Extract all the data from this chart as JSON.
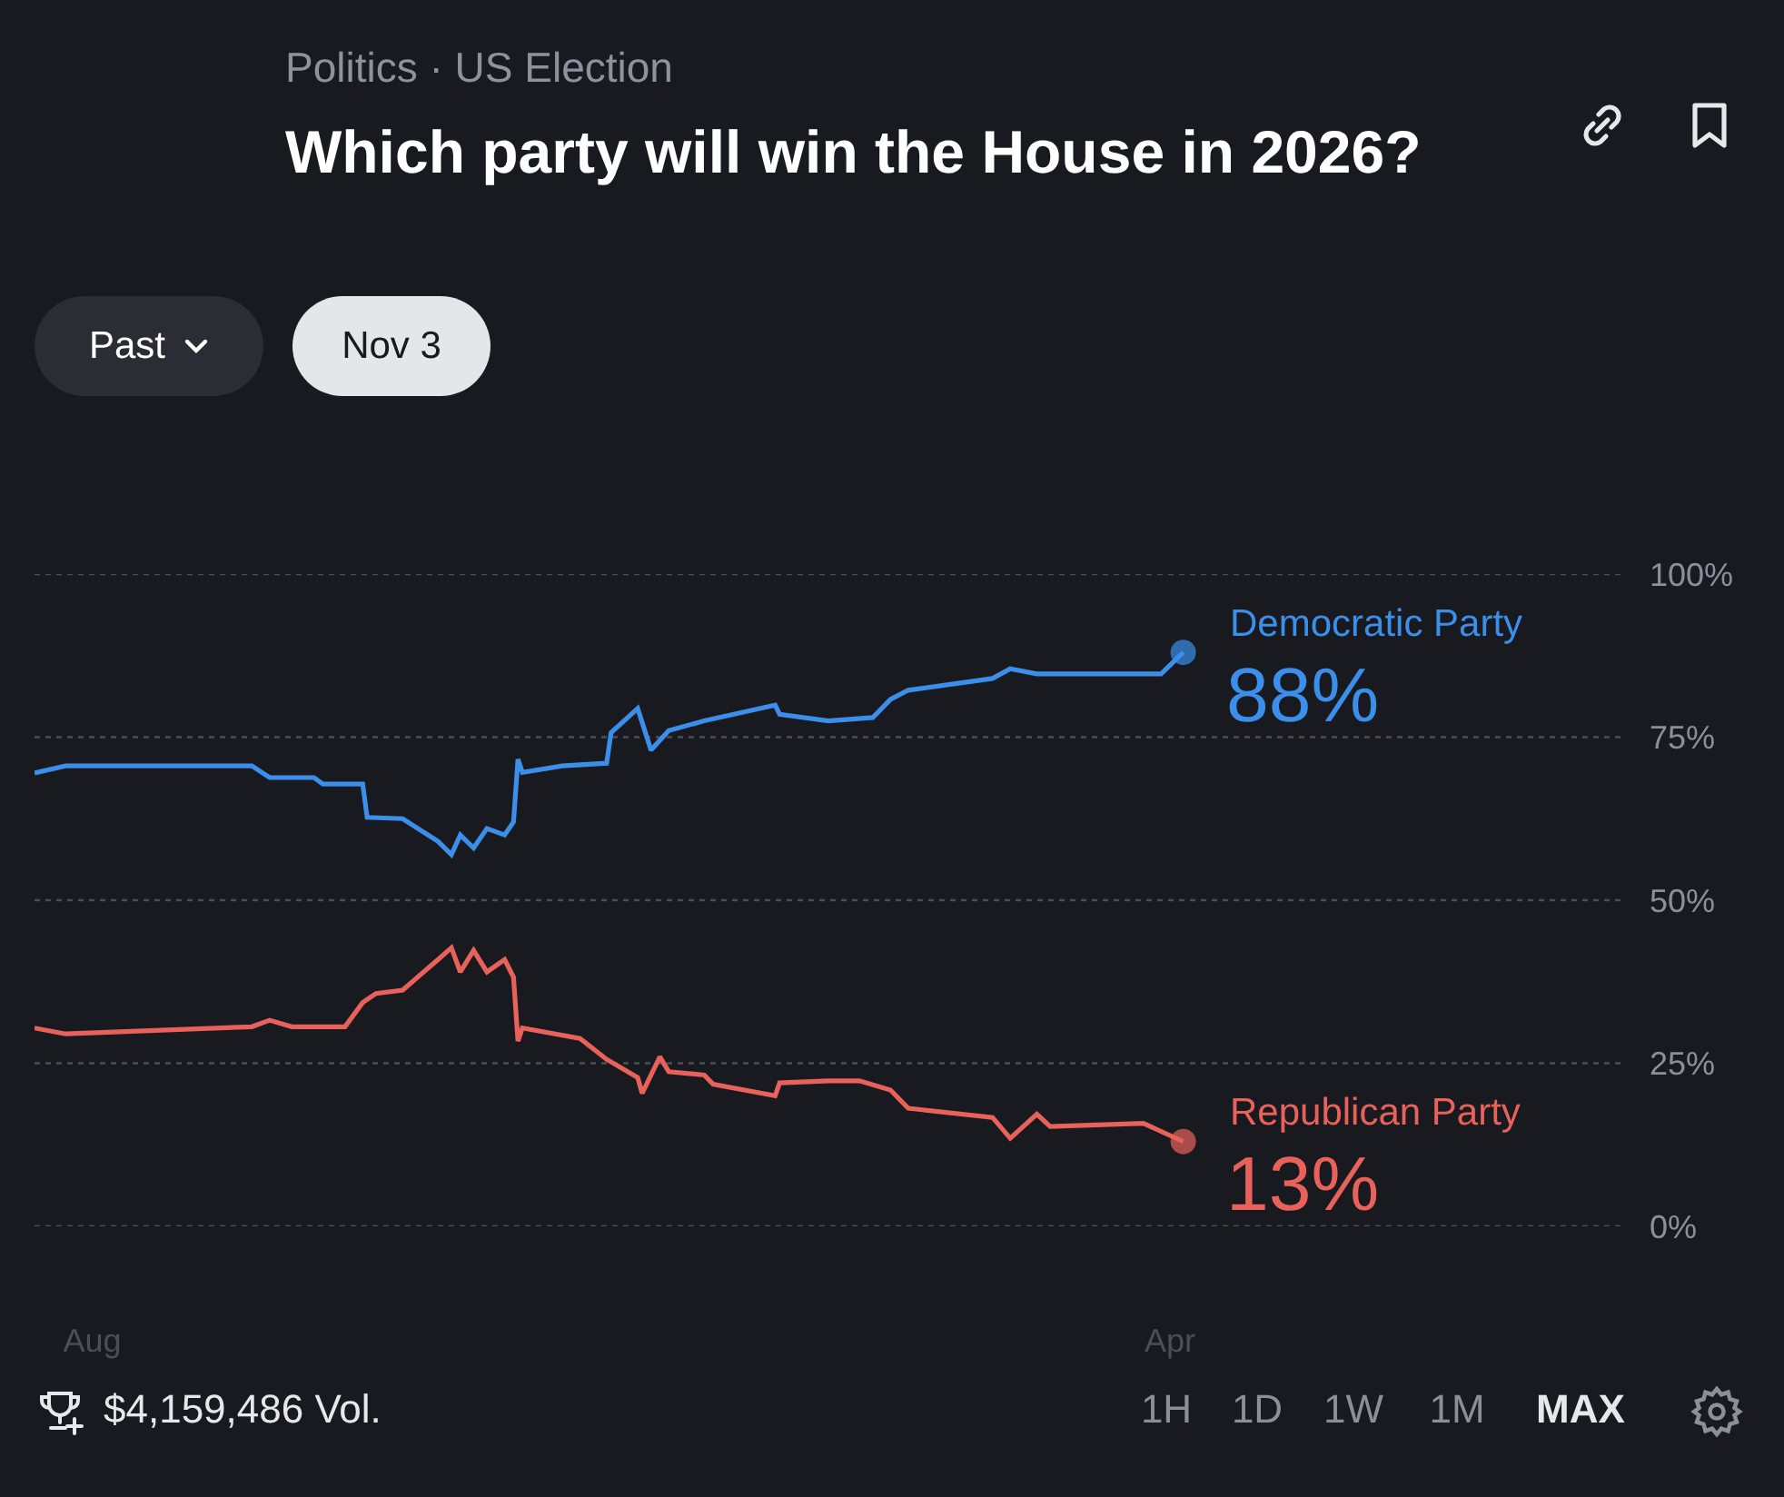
{
  "chart_data": {
    "type": "line",
    "title": "Which party will win the House in 2026?",
    "subtitle": "Politics · US Election",
    "annotations": [
      "Past",
      "Nov 3",
      "$4,159,486 Vol.",
      "1H",
      "1D",
      "1W",
      "1M",
      "MAX"
    ],
    "xlim": [
      "2025-07-19",
      "2026-07-12"
    ],
    "xticks": [
      {
        "value": "2025-08-01",
        "label": "Aug"
      },
      {
        "value": "2026-04-01",
        "label": "Apr"
      }
    ],
    "ylim": [
      0,
      100
    ],
    "yticks": [
      {
        "value": 0,
        "label": "0%"
      },
      {
        "value": 25,
        "label": "25%"
      },
      {
        "value": 50,
        "label": "50%"
      },
      {
        "value": 75,
        "label": "75%"
      },
      {
        "value": 100,
        "label": "100%"
      }
    ],
    "grid": "y",
    "series": [
      {
        "name": "Democratic Party",
        "color": "#3b8ee9",
        "x": [
          "2025-07-19",
          "2025-07-26",
          "2025-09-06",
          "2025-09-10",
          "2025-09-20",
          "2025-09-22",
          "2025-10-01",
          "2025-10-02",
          "2025-10-10",
          "2025-10-18",
          "2025-10-21",
          "2025-10-23",
          "2025-10-26",
          "2025-10-29",
          "2025-11-02",
          "2025-11-04",
          "2025-11-05",
          "2025-11-06",
          "2025-11-15",
          "2025-11-25",
          "2025-11-26",
          "2025-12-02",
          "2025-12-05",
          "2025-12-09",
          "2025-12-17",
          "2026-01-02",
          "2026-01-03",
          "2026-01-14",
          "2026-01-24",
          "2026-01-28",
          "2026-02-01",
          "2026-02-20",
          "2026-02-24",
          "2026-03-02",
          "2026-03-30",
          "2026-04-04"
        ],
        "values": [
          69.5,
          70.6,
          70.6,
          68.8,
          68.8,
          67.8,
          67.8,
          62.7,
          62.5,
          59,
          57,
          60,
          58,
          61,
          60,
          62,
          71.6,
          69.6,
          70.6,
          71,
          75.7,
          79.4,
          73,
          76,
          77.5,
          79.9,
          78.5,
          77.5,
          78,
          80.8,
          82.2,
          84,
          85.5,
          84.7,
          84.7,
          88
        ],
        "value_labels": [
          null,
          null,
          null,
          null,
          null,
          null,
          null,
          null,
          null,
          null,
          null,
          null,
          null,
          null,
          null,
          null,
          null,
          null,
          null,
          null,
          null,
          null,
          null,
          null,
          null,
          null,
          null,
          null,
          null,
          null,
          null,
          null,
          null,
          null,
          null,
          "88%"
        ]
      },
      {
        "name": "Republican Party",
        "color": "#e8625b",
        "x": [
          "2025-07-19",
          "2025-07-26",
          "2025-09-06",
          "2025-09-10",
          "2025-09-15",
          "2025-09-27",
          "2025-10-01",
          "2025-10-04",
          "2025-10-10",
          "2025-10-18",
          "2025-10-21",
          "2025-10-23",
          "2025-10-26",
          "2025-10-29",
          "2025-11-02",
          "2025-11-04",
          "2025-11-05",
          "2025-11-06",
          "2025-11-19",
          "2025-11-25",
          "2025-12-02",
          "2025-12-03",
          "2025-12-07",
          "2025-12-09",
          "2025-12-17",
          "2025-12-19",
          "2026-01-02",
          "2026-01-03",
          "2026-01-14",
          "2026-01-21",
          "2026-01-28",
          "2026-02-01",
          "2026-02-20",
          "2026-02-24",
          "2026-03-02",
          "2026-03-05",
          "2026-03-26",
          "2026-04-04"
        ],
        "values": [
          30.4,
          29.5,
          30.6,
          31.6,
          30.6,
          30.6,
          34.3,
          35.7,
          36.2,
          40.9,
          42.7,
          39,
          42.3,
          39,
          40.9,
          38.2,
          28.4,
          30.4,
          28.8,
          25.6,
          22.8,
          20.4,
          26,
          23.7,
          23.2,
          21.8,
          20,
          22,
          22.3,
          22.3,
          20.9,
          18.1,
          16.7,
          13.5,
          17.2,
          15.3,
          15.8,
          13
        ],
        "value_labels": [
          null,
          null,
          null,
          null,
          null,
          null,
          null,
          null,
          null,
          null,
          null,
          null,
          null,
          null,
          null,
          null,
          null,
          null,
          null,
          null,
          null,
          null,
          null,
          null,
          null,
          null,
          null,
          null,
          null,
          null,
          null,
          null,
          null,
          null,
          null,
          null,
          null,
          "13%"
        ]
      }
    ]
  }
}
